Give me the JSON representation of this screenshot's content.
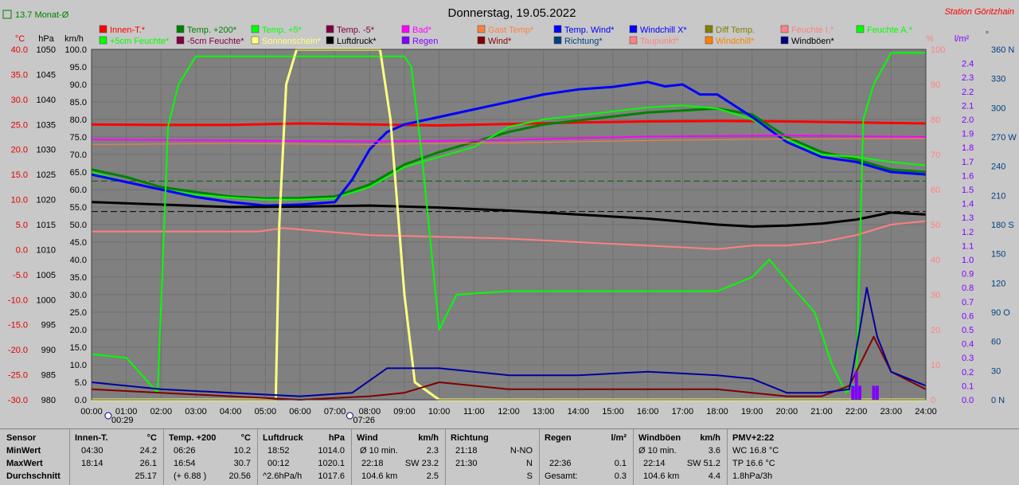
{
  "title": "Donnerstag, 19.05.2022",
  "station": "Station Göritzhain",
  "monthly_avg_label": "13.7 Monat-Ø",
  "axis_headers": {
    "left": [
      "°C",
      "hPa",
      "km/h"
    ],
    "right": [
      "%",
      "l/m²",
      "°"
    ]
  },
  "colors": {
    "plot_bg": "#808080",
    "page_bg": "#c8c8c8"
  },
  "chart_data": {
    "type": "line",
    "title": "Donnerstag, 19.05.2022",
    "x_ticks": [
      "00:00",
      "01:00",
      "02:00",
      "03:00",
      "04:00",
      "05:00",
      "06:00",
      "07:00",
      "08:00",
      "09:00",
      "10:00",
      "11:00",
      "12:00",
      "13:00",
      "14:00",
      "15:00",
      "16:00",
      "17:00",
      "18:00",
      "19:00",
      "20:00",
      "21:00",
      "22:00",
      "23:00",
      "24:00"
    ],
    "xlim": [
      0,
      24
    ],
    "markers": [
      {
        "label": "00:29",
        "x": 0.48
      },
      {
        "label": "07:26",
        "x": 7.43
      }
    ],
    "axes": {
      "temp_c": {
        "range": [
          -30,
          40
        ],
        "ticks": [
          "40.0",
          "35.0",
          "30.0",
          "25.0",
          "20.0",
          "15.0",
          "10.0",
          "5.0",
          "0.0",
          "-5.0",
          "-10.0",
          "-15.0",
          "-20.0",
          "-25.0",
          "-30.0"
        ],
        "color": "#e00000"
      },
      "pressure": {
        "range": [
          980,
          1050
        ],
        "ticks": [
          "1050",
          "1045",
          "1040",
          "1035",
          "1030",
          "1025",
          "1020",
          "1015",
          "1010",
          "1005",
          "1000",
          "995",
          "990",
          "985",
          "980"
        ],
        "color": "#000000"
      },
      "wind_kmh": {
        "range": [
          0,
          100
        ],
        "ticks": [
          "100.0",
          "95.0",
          "90.0",
          "85.0",
          "80.0",
          "75.0",
          "70.0",
          "65.0",
          "60.0",
          "55.0",
          "50.0",
          "45.0",
          "40.0",
          "35.0",
          "30.0",
          "25.0",
          "20.0",
          "15.0",
          "10.0",
          "5.0",
          "0.0"
        ],
        "color": "#000000"
      },
      "humidity": {
        "range": [
          0,
          100
        ],
        "ticks": [
          "100",
          "90",
          "80",
          "70",
          "60",
          "50",
          "40",
          "30",
          "20",
          "10",
          "0"
        ],
        "color": "#ff8080"
      },
      "rain_lm2": {
        "range": [
          0,
          2.5
        ],
        "ticks": [
          "2.4",
          "2.3",
          "2.2",
          "2.1",
          "2.0",
          "1.9",
          "1.8",
          "1.7",
          "1.6",
          "1.5",
          "1.4",
          "1.3",
          "1.2",
          "1.1",
          "1.0",
          "0.9",
          "0.8",
          "0.7",
          "0.6",
          "0.5",
          "0.4",
          "0.3",
          "0.2",
          "0.1",
          "0.0"
        ],
        "color": "#8000ff"
      },
      "direction": {
        "range": [
          0,
          360
        ],
        "ticks": [
          "360 N",
          "330",
          "300",
          "270 W",
          "240",
          "210",
          "180 S",
          "150",
          "120",
          "90 O",
          "60",
          "30",
          "0 N"
        ],
        "color": "#004080"
      }
    },
    "legend": [
      {
        "name": "Innen-T.*",
        "color": "#ff0000"
      },
      {
        "name": "Temp. +200*",
        "color": "#008000"
      },
      {
        "name": "Temp. +5*",
        "color": "#00ff00"
      },
      {
        "name": "Temp. -5*",
        "color": "#800040"
      },
      {
        "name": "Bad*",
        "color": "#ff00ff"
      },
      {
        "name": "Gast Temp*",
        "color": "#ff8040"
      },
      {
        "name": "Temp. Wind*",
        "color": "#0000ff"
      },
      {
        "name": "Windchill X*",
        "color": "#0000ff"
      },
      {
        "name": "Diff Temp.",
        "color": "#808000"
      },
      {
        "name": "Feuchte I.*",
        "color": "#ff8080"
      },
      {
        "name": "Feuchte A.*",
        "color": "#00ff00"
      },
      {
        "name": "+5cm Feuchte*",
        "color": "#00ff00"
      },
      {
        "name": "-5cm Feuchte*",
        "color": "#800040"
      },
      {
        "name": "Sonnenschein*",
        "color": "#ffff80"
      },
      {
        "name": "Luftdruck*",
        "color": "#000000"
      },
      {
        "name": "Regen",
        "color": "#8000ff"
      },
      {
        "name": "Wind*",
        "color": "#800000"
      },
      {
        "name": "Richtung*",
        "color": "#004080"
      },
      {
        "name": "Taupunkt*",
        "color": "#ff8080"
      },
      {
        "name": "Windchill*",
        "color": "#ff8000"
      },
      {
        "name": "Windböen*",
        "color": "#000080"
      }
    ],
    "series": [
      {
        "name": "Innen-T.*",
        "axis": "temp_c",
        "x": [
          0,
          2,
          4,
          6,
          8,
          10,
          12,
          14,
          16,
          18,
          20,
          22,
          24
        ],
        "values": [
          25.0,
          24.9,
          24.9,
          25.2,
          25.0,
          24.8,
          25.1,
          25.4,
          25.6,
          25.7,
          25.6,
          25.4,
          25.2
        ]
      },
      {
        "name": "Temp. +200*",
        "axis": "temp_c",
        "x": [
          0,
          1,
          2,
          3,
          4,
          5,
          6,
          7,
          8,
          9,
          10,
          11,
          12,
          13,
          14,
          15,
          16,
          17,
          18,
          19,
          20,
          21,
          22,
          23,
          24
        ],
        "values": [
          16.0,
          14.5,
          12.5,
          11.5,
          10.6,
          10.2,
          10.3,
          10.6,
          13.0,
          17.0,
          19.5,
          21.5,
          23.5,
          25.0,
          25.8,
          26.6,
          27.4,
          27.8,
          28.2,
          27.0,
          22.5,
          19.5,
          18.0,
          16.0,
          15.5
        ]
      },
      {
        "name": "Temp. +5*",
        "axis": "temp_c",
        "x": [
          0,
          1,
          2,
          3,
          4,
          5,
          6,
          7,
          8,
          9,
          10,
          11,
          12,
          13,
          14,
          15,
          16,
          17,
          18,
          19,
          20,
          21,
          22,
          23,
          24
        ],
        "values": [
          15.5,
          13.5,
          12.0,
          11.0,
          10.4,
          10.0,
          10.0,
          10.3,
          12.5,
          16.5,
          18.5,
          20.5,
          24.5,
          26.0,
          26.8,
          27.6,
          28.4,
          28.8,
          28.2,
          26.0,
          22.0,
          19.0,
          18.5,
          17.5,
          16.8
        ]
      },
      {
        "name": "Temp. Wind*",
        "axis": "temp_c",
        "x": [
          0,
          1,
          2,
          3,
          4,
          5,
          6,
          7,
          7.5,
          8,
          8.5,
          9,
          10,
          11,
          12,
          13,
          14,
          15,
          16,
          16.5,
          17,
          17.5,
          18,
          19,
          20,
          21,
          22,
          23,
          24
        ],
        "values": [
          15.0,
          13.5,
          12.0,
          10.5,
          9.5,
          8.8,
          9.0,
          9.5,
          14.0,
          20.0,
          23.5,
          25.0,
          26.5,
          28.0,
          29.5,
          31.0,
          32.0,
          32.5,
          33.5,
          32.6,
          33.0,
          31.0,
          31.0,
          26.5,
          21.5,
          18.5,
          17.5,
          15.5,
          15.0
        ]
      },
      {
        "name": "Bad*",
        "axis": "temp_c",
        "x": [
          0,
          4,
          8,
          12,
          16,
          20,
          24
        ],
        "values": [
          22.0,
          21.8,
          21.6,
          21.9,
          22.6,
          22.8,
          22.5
        ]
      },
      {
        "name": "Gast Temp*",
        "axis": "temp_c",
        "x": [
          0,
          4,
          8,
          12,
          16,
          20,
          24
        ],
        "values": [
          21.0,
          21.2,
          21.0,
          21.3,
          21.8,
          22.1,
          22.2
        ]
      },
      {
        "name": "Luftdruck*",
        "axis": "pressure",
        "x": [
          0,
          2,
          4,
          6,
          8,
          10,
          12,
          14,
          16,
          18,
          19,
          20,
          21,
          22,
          23,
          24
        ],
        "values": [
          1019.5,
          1019.0,
          1018.5,
          1018.6,
          1018.8,
          1018.4,
          1017.8,
          1017.0,
          1016.2,
          1015.0,
          1014.6,
          1014.8,
          1015.2,
          1016.0,
          1017.4,
          1017.0
        ]
      },
      {
        "name": "Feuchte I.*",
        "axis": "humidity",
        "x": [
          0,
          4,
          4.8,
          5.5,
          8,
          12,
          16,
          18,
          19,
          20,
          21,
          22,
          23,
          24
        ],
        "values": [
          48,
          48,
          48,
          49,
          47,
          46,
          44,
          43,
          44,
          44,
          45,
          47,
          50,
          51
        ]
      },
      {
        "name": "Feuchte A.*",
        "axis": "humidity",
        "x": [
          0,
          1,
          1.9,
          2.2,
          2.5,
          3,
          8,
          9,
          9.2,
          9.5,
          10,
          10.5,
          12,
          14,
          16,
          18,
          19,
          19.5,
          20,
          20.8,
          21.3,
          21.7,
          22,
          22.2,
          22.5,
          23,
          24
        ],
        "values": [
          13,
          12,
          2,
          78,
          90,
          98,
          98,
          98,
          95,
          70,
          20,
          30,
          31,
          31,
          31,
          31,
          35,
          40,
          34,
          25,
          10,
          2,
          5,
          80,
          90,
          99,
          99
        ]
      },
      {
        "name": "Sonnenschein*",
        "axis": "humidity",
        "x": [
          0,
          5.3,
          5.4,
          5.6,
          5.9,
          8.3,
          8.6,
          9.0,
          9.3,
          10.0,
          24
        ],
        "values": [
          0,
          0,
          50,
          90,
          100,
          100,
          80,
          30,
          5,
          0,
          0
        ]
      },
      {
        "name": "Wind*",
        "axis": "wind_kmh",
        "x": [
          0,
          2,
          4,
          6,
          8,
          9,
          10,
          12,
          14,
          16,
          18,
          19,
          20,
          21,
          21.8,
          22.2,
          22.5,
          23,
          24
        ],
        "values": [
          3,
          2,
          1,
          0,
          1,
          2,
          5,
          3,
          3,
          3,
          3,
          2,
          1,
          1,
          4,
          12,
          18,
          8,
          3
        ]
      },
      {
        "name": "Windböen*",
        "axis": "wind_kmh",
        "x": [
          0,
          2,
          4,
          6,
          7.5,
          8.5,
          10,
          12,
          14,
          16,
          18,
          19,
          20,
          21,
          21.8,
          22.1,
          22.3,
          22.6,
          23,
          24
        ],
        "values": [
          5,
          3,
          2,
          1,
          2,
          9,
          9,
          7,
          7,
          8,
          7,
          6,
          2,
          2,
          3,
          20,
          32,
          18,
          8,
          4
        ]
      },
      {
        "name": "Regen",
        "axis": "rain_lm2",
        "x": [
          21.9,
          22.0,
          22.1,
          22.5,
          22.6
        ],
        "values": [
          0.1,
          0.2,
          0.1,
          0.1,
          0.1
        ]
      }
    ]
  },
  "summary": {
    "sensor": {
      "header": "Sensor",
      "rows": [
        "MinWert",
        "MaxWert",
        "Durchschnitt"
      ]
    },
    "innen": {
      "header": "Innen-T.",
      "unit": "°C",
      "rows": [
        [
          "04:30",
          "24.2"
        ],
        [
          "18:14",
          "26.1"
        ],
        [
          "",
          "25.17"
        ]
      ]
    },
    "temp200": {
      "header": "Temp. +200",
      "unit": "°C",
      "rows": [
        [
          "06:26",
          "10.2"
        ],
        [
          "16:54",
          "30.7"
        ],
        [
          "(+ 6.88 )",
          "20.56"
        ]
      ]
    },
    "luftdruck": {
      "header": "Luftdruck",
      "unit": "hPa",
      "rows": [
        [
          "18:52",
          "1014.0"
        ],
        [
          "00:12",
          "1020.1"
        ],
        [
          "^2.6hPa/h",
          "1017.6"
        ]
      ]
    },
    "wind": {
      "header": "Wind",
      "unit": "km/h",
      "rows": [
        [
          "Ø 10 min.",
          "2.3"
        ],
        [
          "22:18",
          "SW 23.2"
        ],
        [
          "104.6 km",
          "2.5"
        ]
      ]
    },
    "richtung": {
      "header": "Richtung",
      "rows": [
        [
          "21:18",
          "N-NO"
        ],
        [
          "21:30",
          "N"
        ],
        [
          "",
          "S"
        ]
      ]
    },
    "regen": {
      "header": "Regen",
      "unit": "l/m²",
      "rows": [
        [
          "",
          ""
        ],
        [
          "22:36",
          "0.1"
        ],
        [
          "Gesamt:",
          "0.3"
        ]
      ]
    },
    "windboeen": {
      "header": "Windböen",
      "unit": "km/h",
      "rows": [
        [
          "Ø 10 min.",
          "3.6"
        ],
        [
          "22:14",
          "SW 51.2"
        ],
        [
          "104.6 km",
          "4.4"
        ]
      ]
    },
    "pmv": {
      "header": "PMV+2:22",
      "rows": [
        "WC 16.8 °C",
        "TP 16.6 °C",
        "1.8hPa/3h"
      ]
    }
  }
}
